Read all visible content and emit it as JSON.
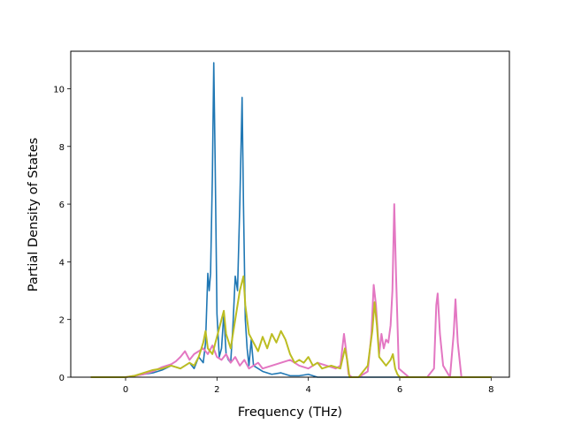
{
  "chart_data": {
    "type": "line",
    "title": "",
    "xlabel": "Frequency (THz)",
    "ylabel": "Partial Density of States",
    "xlim": [
      -1.2,
      8.4
    ],
    "ylim": [
      0,
      11.3
    ],
    "xticks": [
      0,
      2,
      4,
      6,
      8
    ],
    "yticks": [
      0,
      2,
      4,
      6,
      8,
      10
    ],
    "xtick_labels": [
      "0",
      "2",
      "4",
      "6",
      "8"
    ],
    "ytick_labels": [
      "0",
      "2",
      "4",
      "6",
      "8",
      "10"
    ],
    "grid": false,
    "legend": "none",
    "series": [
      {
        "color": "#1f77b4",
        "x": [
          -0.75,
          0.0,
          0.2,
          0.4,
          0.6,
          0.8,
          1.0,
          1.2,
          1.4,
          1.5,
          1.6,
          1.7,
          1.75,
          1.8,
          1.83,
          1.86,
          1.9,
          1.93,
          1.96,
          2.0,
          2.05,
          2.1,
          2.15,
          2.2,
          2.25,
          2.3,
          2.35,
          2.4,
          2.45,
          2.5,
          2.55,
          2.58,
          2.62,
          2.66,
          2.7,
          2.75,
          2.8,
          2.9,
          3.0,
          3.2,
          3.4,
          3.6,
          3.8,
          4.0,
          4.2,
          4.5,
          5.0,
          6.0,
          7.0,
          8.0
        ],
        "y": [
          0.0,
          0.0,
          0.05,
          0.1,
          0.15,
          0.25,
          0.4,
          0.3,
          0.5,
          0.3,
          0.7,
          0.5,
          1.2,
          3.6,
          3.0,
          3.6,
          7.0,
          10.9,
          7.5,
          2.2,
          0.7,
          1.0,
          2.2,
          0.8,
          0.6,
          0.5,
          1.8,
          3.5,
          3.0,
          6.0,
          9.7,
          6.0,
          2.0,
          1.0,
          0.4,
          1.3,
          0.4,
          0.3,
          0.2,
          0.1,
          0.15,
          0.05,
          0.05,
          0.1,
          0.0,
          0.0,
          0.0,
          0.0,
          0.0,
          0.0
        ]
      },
      {
        "color": "#e377c2",
        "x": [
          -0.75,
          0.0,
          0.2,
          0.4,
          0.6,
          0.8,
          1.0,
          1.1,
          1.2,
          1.3,
          1.4,
          1.5,
          1.6,
          1.7,
          1.8,
          1.9,
          2.0,
          2.1,
          2.2,
          2.3,
          2.4,
          2.5,
          2.6,
          2.7,
          2.8,
          2.9,
          3.0,
          3.2,
          3.4,
          3.6,
          3.8,
          4.0,
          4.2,
          4.4,
          4.6,
          4.7,
          4.78,
          4.82,
          4.88,
          4.95,
          5.1,
          5.3,
          5.38,
          5.43,
          5.48,
          5.55,
          5.6,
          5.65,
          5.7,
          5.75,
          5.8,
          5.84,
          5.88,
          5.92,
          5.98,
          6.2,
          6.6,
          6.75,
          6.8,
          6.83,
          6.88,
          6.95,
          7.1,
          7.18,
          7.22,
          7.27,
          7.35,
          7.5,
          8.0
        ],
        "y": [
          0.0,
          0.0,
          0.05,
          0.1,
          0.2,
          0.35,
          0.45,
          0.55,
          0.7,
          0.9,
          0.6,
          0.8,
          0.9,
          1.0,
          0.8,
          1.1,
          0.7,
          0.6,
          0.8,
          0.5,
          0.7,
          0.4,
          0.6,
          0.3,
          0.4,
          0.5,
          0.3,
          0.4,
          0.5,
          0.6,
          0.4,
          0.3,
          0.5,
          0.4,
          0.3,
          0.4,
          1.5,
          1.0,
          0.1,
          0.0,
          0.0,
          0.2,
          1.5,
          3.2,
          2.5,
          0.8,
          1.5,
          1.0,
          1.3,
          1.2,
          1.8,
          3.0,
          6.0,
          3.5,
          0.3,
          0.0,
          0.0,
          0.3,
          2.5,
          2.9,
          1.5,
          0.4,
          0.0,
          1.5,
          2.7,
          1.2,
          0.0,
          0.0,
          0.0
        ]
      },
      {
        "color": "#bcbd22",
        "x": [
          -0.75,
          0.0,
          0.2,
          0.4,
          0.6,
          0.8,
          1.0,
          1.2,
          1.4,
          1.5,
          1.6,
          1.7,
          1.75,
          1.8,
          1.9,
          2.0,
          2.1,
          2.15,
          2.2,
          2.3,
          2.4,
          2.5,
          2.58,
          2.62,
          2.7,
          2.8,
          2.9,
          3.0,
          3.1,
          3.2,
          3.3,
          3.4,
          3.5,
          3.6,
          3.7,
          3.8,
          3.9,
          4.0,
          4.1,
          4.2,
          4.3,
          4.5,
          4.7,
          4.8,
          4.85,
          4.9,
          5.1,
          5.3,
          5.4,
          5.45,
          5.5,
          5.55,
          5.6,
          5.7,
          5.8,
          5.85,
          5.9,
          5.95,
          6.0,
          6.2,
          8.0
        ],
        "y": [
          0.0,
          0.0,
          0.05,
          0.15,
          0.25,
          0.3,
          0.4,
          0.3,
          0.5,
          0.4,
          0.7,
          1.2,
          1.6,
          1.0,
          0.8,
          1.4,
          2.0,
          2.3,
          1.5,
          1.0,
          2.0,
          3.0,
          3.5,
          2.5,
          1.5,
          1.2,
          0.9,
          1.4,
          1.0,
          1.5,
          1.2,
          1.6,
          1.3,
          0.8,
          0.5,
          0.6,
          0.5,
          0.7,
          0.4,
          0.5,
          0.3,
          0.4,
          0.3,
          1.0,
          0.6,
          0.0,
          0.0,
          0.4,
          1.6,
          2.6,
          1.8,
          0.7,
          0.6,
          0.4,
          0.6,
          0.8,
          0.3,
          0.1,
          0.0,
          0.0,
          0.0
        ]
      }
    ]
  }
}
